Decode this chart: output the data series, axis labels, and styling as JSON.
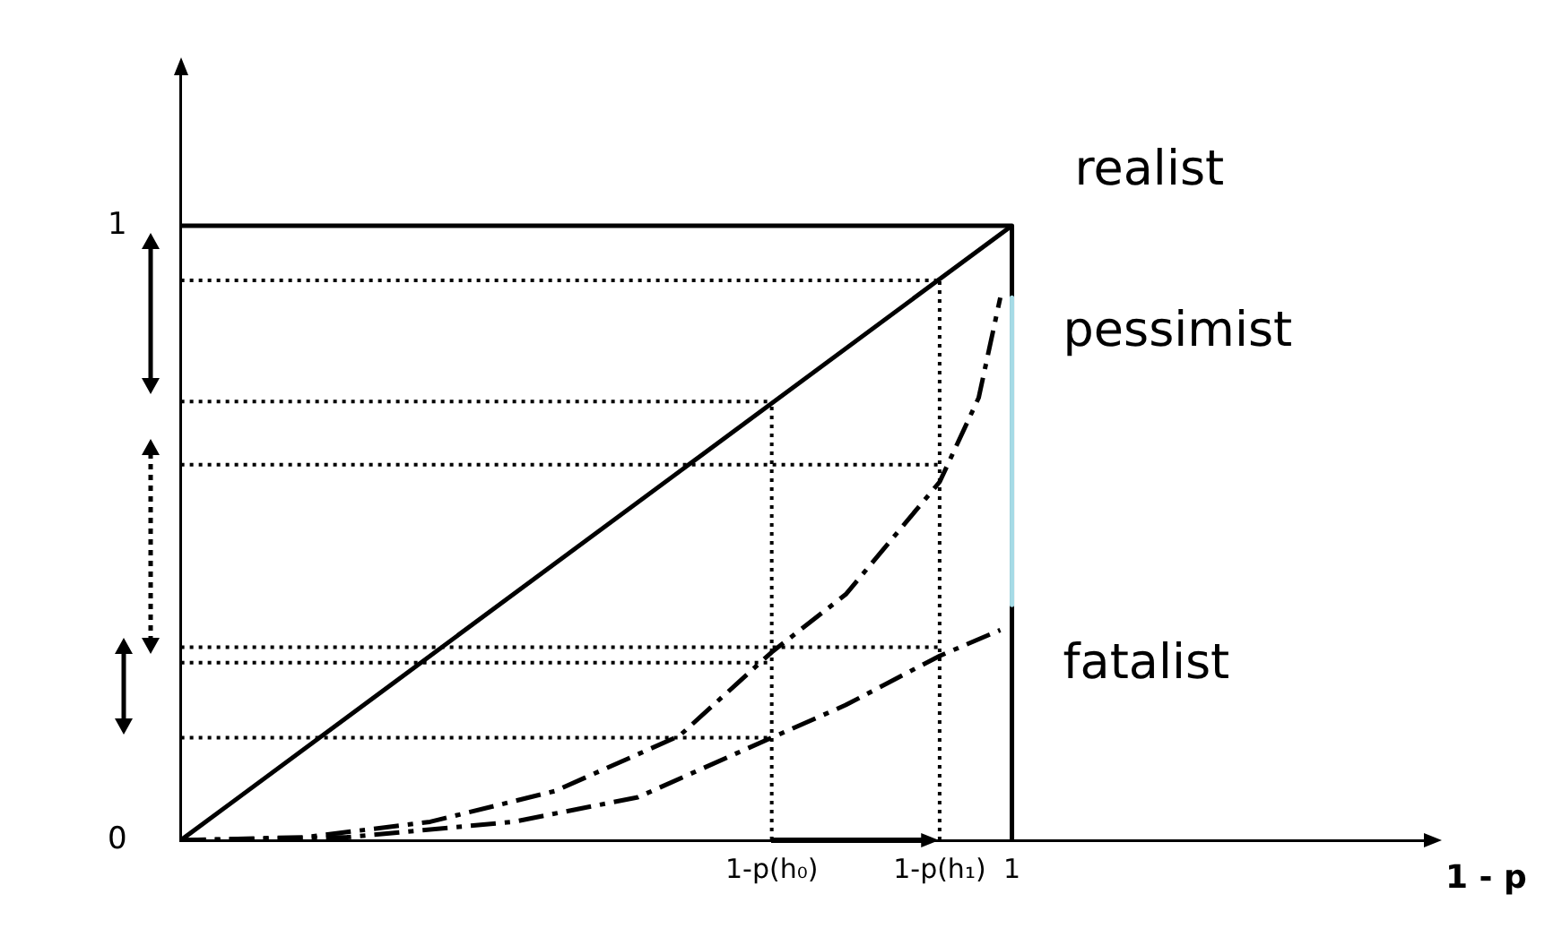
{
  "chart_data": {
    "type": "line",
    "xlabel": "1 - p",
    "xlim": [
      0,
      1.5
    ],
    "ylim": [
      0,
      1.25
    ],
    "xticks": [
      {
        "value": 0,
        "label": null
      },
      {
        "value": 0.711,
        "label": "1-p(h₀)"
      },
      {
        "value": 0.913,
        "label": "1-p(h₁)"
      },
      1
    ],
    "yticks": [
      0,
      1
    ],
    "grid": false,
    "legend": false,
    "marker": "none",
    "series": [
      {
        "name": "realist",
        "color": "#000000",
        "line_style": "solid",
        "x": [
          0,
          1
        ],
        "values": [
          0,
          1
        ]
      },
      {
        "name": "pessimist",
        "color": "#000000",
        "line_style": "dashed",
        "x": [
          0,
          0.15,
          0.3,
          0.45,
          0.6,
          0.711,
          0.8,
          0.913,
          0.96,
          0.986
        ],
        "values": [
          0,
          0.005,
          0.03,
          0.08,
          0.17,
          0.306,
          0.4,
          0.583,
          0.72,
          0.883
        ]
      },
      {
        "name": "fatalist",
        "color": "#000000",
        "line_style": "dashed",
        "x": [
          0,
          0.2,
          0.4,
          0.55,
          0.711,
          0.8,
          0.913,
          0.986
        ],
        "values": [
          0,
          0.005,
          0.03,
          0.07,
          0.167,
          0.22,
          0.3,
          0.342
        ]
      },
      {
        "color": "#000000",
        "line_style": "solid",
        "x": [
          0,
          1,
          1
        ],
        "values": [
          1,
          1,
          0
        ]
      },
      {
        "color": "#a6dbe6",
        "line_style": "solid",
        "x": [
          1,
          1
        ],
        "values": [
          0.883,
          0.383
        ]
      },
      {
        "color": "#000000",
        "line_style": "dotted",
        "x": [
          0,
          0.913
        ],
        "values": [
          0.911,
          0.911
        ]
      },
      {
        "color": "#000000",
        "line_style": "dotted",
        "x": [
          0,
          0.711
        ],
        "values": [
          0.714,
          0.714
        ]
      },
      {
        "color": "#000000",
        "line_style": "dotted",
        "x": [
          0,
          0.913
        ],
        "values": [
          0.611,
          0.611
        ]
      },
      {
        "color": "#000000",
        "line_style": "dotted",
        "x": [
          0,
          0.913
        ],
        "values": [
          0.314,
          0.314
        ]
      },
      {
        "color": "#000000",
        "line_style": "dotted",
        "x": [
          0,
          0.711
        ],
        "values": [
          0.289,
          0.289
        ]
      },
      {
        "color": "#000000",
        "line_style": "dotted",
        "x": [
          0,
          0.711
        ],
        "values": [
          0.167,
          0.167
        ]
      },
      {
        "color": "#000000",
        "line_style": "dotted",
        "x": [
          0.711,
          0.711
        ],
        "values": [
          0,
          0.711
        ]
      },
      {
        "color": "#000000",
        "line_style": "dotted",
        "x": [
          0.913,
          0.913
        ],
        "values": [
          0,
          0.913
        ]
      }
    ]
  }
}
